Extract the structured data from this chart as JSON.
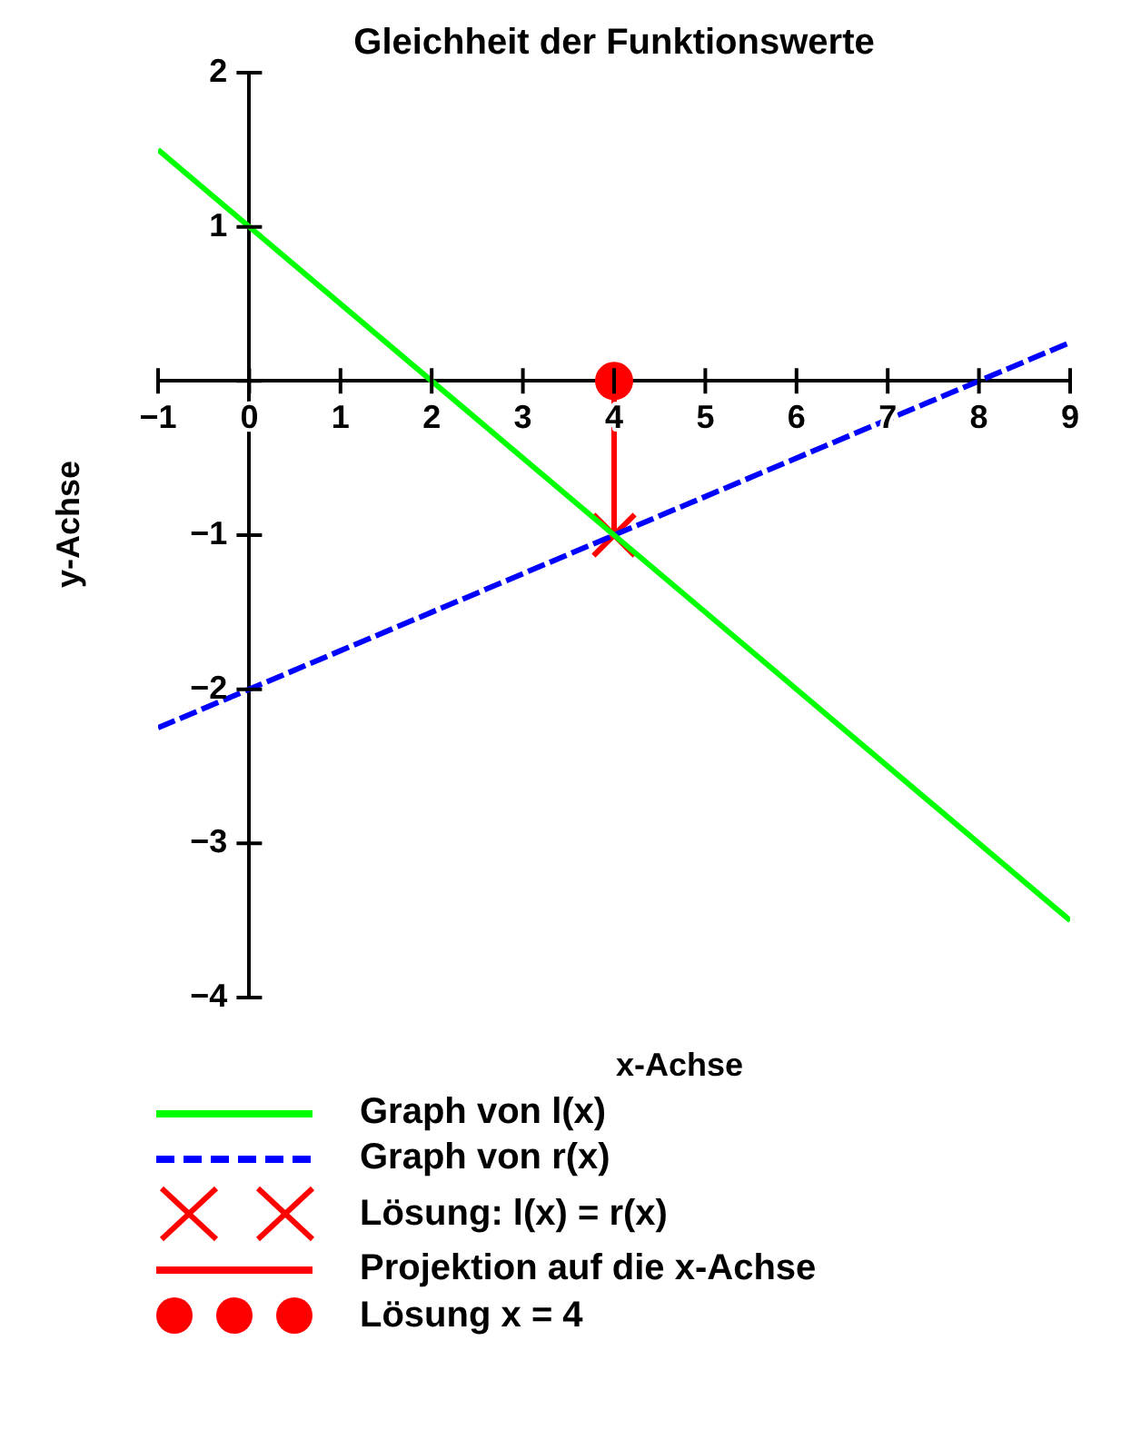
{
  "chart_data": {
    "type": "line",
    "title": "Gleichheit der Funktionswerte",
    "xlabel": "x-Achse",
    "ylabel": "y-Achse",
    "xlim": [
      -1,
      9
    ],
    "ylim": [
      -4,
      2
    ],
    "xticks": [
      -1,
      0,
      1,
      2,
      3,
      4,
      5,
      6,
      7,
      8,
      9
    ],
    "yticks": [
      -4,
      -3,
      -2,
      -1,
      {
        "value": 0,
        "label": null
      },
      1,
      2
    ],
    "grid": false,
    "legend": "bottom",
    "series": [
      {
        "name": "Graph von  l(x)",
        "type": "line",
        "marker": "none",
        "color": "#00ff00",
        "x": [
          -1,
          9
        ],
        "values": [
          1.5,
          -3.5
        ],
        "line_style": "solid"
      },
      {
        "name": "Graph von  r(x)",
        "type": "line",
        "marker": "none",
        "color": "#0000ff",
        "x": [
          -1,
          9
        ],
        "values": [
          -2.25,
          0.25
        ],
        "line_style": "dashed"
      },
      {
        "name": "Lösung:  l(x) = r(x)",
        "type": "scatter",
        "color": "#ff0000",
        "x": [
          4
        ],
        "values": [
          -1
        ],
        "marker": "cross"
      },
      {
        "name": "Projektion auf die x-Achse",
        "type": "line",
        "color": "#ff0000",
        "x": [
          4,
          4
        ],
        "values": [
          -1,
          0
        ],
        "line_style": "solid"
      },
      {
        "name": "Lösung  x = 4",
        "type": "scatter",
        "color": "#ff0000",
        "x": [
          4
        ],
        "values": [
          0
        ],
        "marker": "circle"
      }
    ]
  }
}
